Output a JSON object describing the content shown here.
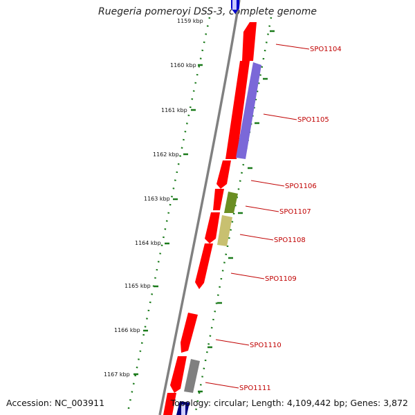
{
  "title": "Ruegeria pomeroyi DSS-3, complete genome",
  "accession": "Accession: NC_003911",
  "topology": "Topology: circular; Length: 4,109,442 bp; Genes: 3,872",
  "scale_labels": [
    "1159 kbp",
    "1160 kbp",
    "1161 kbp",
    "1162 kbp",
    "1163 kbp",
    "1164 kbp",
    "1165 kbp",
    "1166 kbp",
    "1167 kbp"
  ],
  "gene_labels": [
    "SPO1104",
    "SPO1105",
    "SPO1106",
    "SPO1107",
    "SPO1108",
    "SPO1109",
    "SPO1110",
    "SPO1111"
  ],
  "colors": {
    "red_feature": "#ff0000",
    "purple_feature": "#7b68d8",
    "olive_feature": "#6b8e23",
    "khaki_feature": "#c8c070",
    "gray_feature": "#808080",
    "blue_feature": "#0000cc",
    "navy_feature": "#000080",
    "backbone": "#808080",
    "ticks": "#1a7a1a",
    "label": "#c00000"
  }
}
